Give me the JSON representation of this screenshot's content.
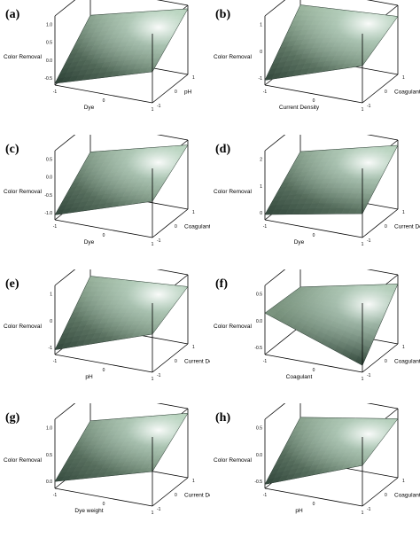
{
  "chart_data": [
    {
      "type": "surface",
      "label": "(a)",
      "zlabel": "Color Removal",
      "xlabel": "Dye",
      "ylabel": "pH",
      "xticks": [
        "-1",
        "0",
        "1"
      ],
      "yticks": [
        "-1",
        "0",
        "1"
      ],
      "zticks": [
        "1.0",
        "0.5",
        "0.0",
        "-0.5"
      ],
      "zlim": [
        -0.8,
        1.2
      ],
      "corners": [
        -0.75,
        0.1,
        0.4,
        1.1
      ],
      "curvature": 0.3
    },
    {
      "type": "surface",
      "label": "(b)",
      "zlabel": "Color Removal",
      "xlabel": "Current Density",
      "ylabel": "Coagulant Dose",
      "xticks": [
        "-1",
        "0",
        "1"
      ],
      "yticks": [
        "-1",
        "0",
        "1"
      ],
      "zticks": [
        "1",
        "0",
        "-1"
      ],
      "zlim": [
        -1.2,
        1.6
      ],
      "corners": [
        -1.0,
        0.3,
        0.9,
        1.15
      ],
      "curvature": 0.45
    },
    {
      "type": "surface",
      "label": "(c)",
      "zlabel": "Color Removal",
      "xlabel": "Dye",
      "ylabel": "Coagulant Dose",
      "xticks": [
        "-1",
        "0",
        "1"
      ],
      "yticks": [
        "-1",
        "0",
        "1"
      ],
      "zticks": [
        "0.5",
        "0.0",
        "-0.5",
        "-1.0"
      ],
      "zlim": [
        -1.2,
        0.9
      ],
      "corners": [
        -1.05,
        -0.1,
        0.0,
        0.75
      ],
      "curvature": 0.3
    },
    {
      "type": "surface",
      "label": "(d)",
      "zlabel": "Color Removal",
      "xlabel": "Dye",
      "ylabel": "Current Density",
      "xticks": [
        "-1",
        "0",
        "1"
      ],
      "yticks": [
        "-1",
        "0",
        "1"
      ],
      "zticks": [
        "2",
        "1",
        "0"
      ],
      "zlim": [
        -0.3,
        2.3
      ],
      "corners": [
        -0.1,
        0.6,
        1.2,
        2.1
      ],
      "curvature": 0.3
    },
    {
      "type": "surface",
      "label": "(e)",
      "zlabel": "Color Removal",
      "xlabel": "pH",
      "ylabel": "Current Density",
      "xticks": [
        "-1",
        "0",
        "1"
      ],
      "yticks": [
        "-1",
        "0",
        "1"
      ],
      "zticks": [
        "1",
        "0",
        "-1"
      ],
      "zlim": [
        -1.3,
        1.6
      ],
      "corners": [
        -1.1,
        0.3,
        0.8,
        1.1
      ],
      "curvature": 0.35
    },
    {
      "type": "surface",
      "label": "(f)",
      "zlabel": "Color Removal",
      "xlabel": "Coagulant",
      "ylabel": "Coagulant Dose",
      "xticks": [
        "-1",
        "0",
        "1"
      ],
      "yticks": [
        "-1",
        "0",
        "1"
      ],
      "zticks": [
        "0.5",
        "0.0",
        "-0.5"
      ],
      "zlim": [
        -0.7,
        0.8
      ],
      "corners": [
        0.2,
        -0.55,
        0.15,
        0.6
      ],
      "curvature": 0.15
    },
    {
      "type": "surface",
      "label": "(g)",
      "zlabel": "Color Removal",
      "xlabel": "Dye weight",
      "ylabel": "Current Density",
      "xticks": [
        "-1",
        "0",
        "1"
      ],
      "yticks": [
        "-1",
        "0",
        "1"
      ],
      "zticks": [
        "1.0",
        "0.5",
        "0.0"
      ],
      "zlim": [
        -0.3,
        1.2
      ],
      "corners": [
        -0.15,
        0.45,
        0.55,
        1.1
      ],
      "curvature": 0.05
    },
    {
      "type": "surface",
      "label": "(h)",
      "zlabel": "Color Removal",
      "xlabel": "pH",
      "ylabel": "Coagulant Dose",
      "xticks": [
        "-1",
        "0",
        "1"
      ],
      "yticks": [
        "-1",
        "0",
        "1"
      ],
      "zticks": [
        "0.5",
        "0.0",
        "-0.5"
      ],
      "zlim": [
        -0.9,
        0.8
      ],
      "corners": [
        -0.8,
        0.1,
        0.15,
        0.55
      ],
      "curvature": 0.55
    }
  ]
}
